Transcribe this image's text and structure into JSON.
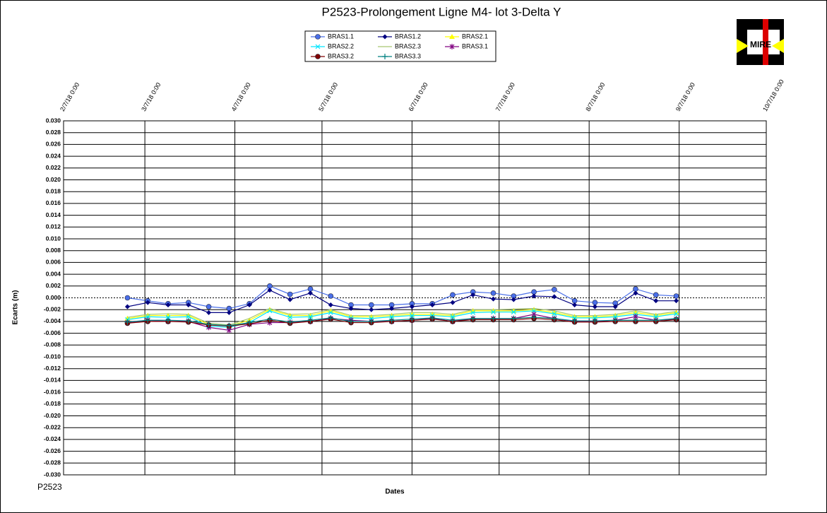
{
  "chart_data": {
    "type": "line",
    "title": "P2523-Prolongement  Ligne  M4-  lot 3-Delta  Y",
    "xlabel": "Dates",
    "ylabel": "Ecarts (m)",
    "note": "P2523",
    "grid": true,
    "legend": "top",
    "x": [
      "2018-03-01",
      "2018-03-08",
      "2018-03-15",
      "2018-03-22",
      "2018-03-29",
      "2018-04-05",
      "2018-04-12",
      "2018-04-19",
      "2018-04-26",
      "2018-05-03",
      "2018-05-10",
      "2018-05-17",
      "2018-05-24",
      "2018-05-31",
      "2018-06-07",
      "2018-06-14",
      "2018-06-21",
      "2018-06-28",
      "2018-07-05",
      "2018-07-12",
      "2018-07-19",
      "2018-07-26",
      "2018-08-02",
      "2018-08-09",
      "2018-08-16",
      "2018-08-23",
      "2018-08-30",
      "2018-09-06"
    ],
    "xlim": [
      "2018-02-07",
      "2018-10-07"
    ],
    "xticks": [
      {
        "value": "2018-02-07",
        "label": "2/7/18 0:00"
      },
      {
        "value": "2018-03-07",
        "label": "3/7/18 0:00"
      },
      {
        "value": "2018-04-07",
        "label": "4/7/18 0:00"
      },
      {
        "value": "2018-05-07",
        "label": "5/7/18 0:00"
      },
      {
        "value": "2018-06-07",
        "label": "6/7/18 0:00"
      },
      {
        "value": "2018-07-07",
        "label": "7/7/18 0:00"
      },
      {
        "value": "2018-08-07",
        "label": "8/7/18 0:00"
      },
      {
        "value": "2018-09-07",
        "label": "9/7/18 0:00"
      },
      {
        "value": "2018-10-07",
        "label": "10/7/18 0:00"
      }
    ],
    "ylim": [
      -0.03,
      0.03
    ],
    "yticks": [
      {
        "value": 0.03,
        "label": "0.030"
      },
      {
        "value": 0.028,
        "label": "0.028"
      },
      {
        "value": 0.026,
        "label": "0.026"
      },
      {
        "value": 0.024,
        "label": "0.024"
      },
      {
        "value": 0.022,
        "label": "0.022"
      },
      {
        "value": 0.02,
        "label": "0.020"
      },
      {
        "value": 0.018,
        "label": "0.018"
      },
      {
        "value": 0.016,
        "label": "0.016"
      },
      {
        "value": 0.014,
        "label": "0.014"
      },
      {
        "value": 0.012,
        "label": "0.012"
      },
      {
        "value": 0.01,
        "label": "0.010"
      },
      {
        "value": 0.008,
        "label": "0.008"
      },
      {
        "value": 0.006,
        "label": "0.006"
      },
      {
        "value": 0.004,
        "label": "0.004"
      },
      {
        "value": 0.002,
        "label": "0.002"
      },
      {
        "value": 0,
        "label": "0.000"
      },
      {
        "value": -0.002,
        "label": "-0.002"
      },
      {
        "value": -0.004,
        "label": "-0.004"
      },
      {
        "value": -0.006,
        "label": "-0.006"
      },
      {
        "value": -0.008,
        "label": "-0.008"
      },
      {
        "value": -0.01,
        "label": "-0.010"
      },
      {
        "value": -0.012,
        "label": "-0.012"
      },
      {
        "value": -0.014,
        "label": "-0.014"
      },
      {
        "value": -0.016,
        "label": "-0.016"
      },
      {
        "value": -0.018,
        "label": "-0.018"
      },
      {
        "value": -0.02,
        "label": "-0.020"
      },
      {
        "value": -0.022,
        "label": "-0.022"
      },
      {
        "value": -0.024,
        "label": "-0.024"
      },
      {
        "value": -0.026,
        "label": "-0.026"
      },
      {
        "value": -0.028,
        "label": "-0.028"
      },
      {
        "value": -0.03,
        "label": "-0.030"
      }
    ],
    "series": [
      {
        "name": "BRAS1.1",
        "color": "#4a6fe8",
        "marker": "circle",
        "values": [
          0.0,
          -0.0005,
          -0.001,
          -0.0008,
          -0.0015,
          -0.0018,
          -0.001,
          0.002,
          0.0006,
          0.0015,
          0.0003,
          -0.0012,
          -0.0012,
          -0.0012,
          -0.001,
          -0.001,
          0.0005,
          0.001,
          0.0008,
          0.0003,
          0.001,
          0.0014,
          -0.0005,
          -0.0008,
          -0.0009,
          0.0015,
          0.0005,
          0.0003
        ]
      },
      {
        "name": "BRAS1.2",
        "color": "#000080",
        "marker": "diamond",
        "values": [
          -0.0015,
          -0.0008,
          -0.0012,
          -0.0012,
          -0.0025,
          -0.0025,
          -0.0012,
          0.0013,
          -0.0003,
          0.0008,
          -0.0012,
          -0.0018,
          -0.002,
          -0.0018,
          -0.0015,
          -0.0012,
          -0.0008,
          0.0005,
          -0.0002,
          -0.0003,
          0.0003,
          0.0002,
          -0.0012,
          -0.0015,
          -0.0015,
          0.0008,
          -0.0005,
          -0.0005
        ]
      },
      {
        "name": "BRAS2.1",
        "color": "#ffff00",
        "marker": "triangle",
        "values": [
          -0.0035,
          -0.003,
          -0.003,
          -0.003,
          -0.0045,
          -0.0048,
          -0.0038,
          -0.002,
          -0.003,
          -0.003,
          -0.0022,
          -0.0032,
          -0.0032,
          -0.003,
          -0.0028,
          -0.0028,
          -0.003,
          -0.0022,
          -0.0022,
          -0.0022,
          -0.002,
          -0.0025,
          -0.0032,
          -0.0032,
          -0.003,
          -0.0025,
          -0.003,
          -0.0025
        ]
      },
      {
        "name": "BRAS2.2",
        "color": "#00e5ff",
        "marker": "x",
        "values": [
          -0.0037,
          -0.0032,
          -0.0033,
          -0.0032,
          -0.0048,
          -0.005,
          -0.0042,
          -0.0022,
          -0.0033,
          -0.0032,
          -0.0025,
          -0.0034,
          -0.0035,
          -0.0032,
          -0.003,
          -0.003,
          -0.0032,
          -0.0025,
          -0.0024,
          -0.0024,
          -0.0022,
          -0.0027,
          -0.0034,
          -0.0034,
          -0.0032,
          -0.0028,
          -0.0032,
          -0.0027
        ]
      },
      {
        "name": "BRAS2.3",
        "color": "#a8c870",
        "values": [
          -0.0033,
          -0.0028,
          -0.0027,
          -0.0028,
          -0.0043,
          -0.0046,
          -0.0035,
          -0.0018,
          -0.0028,
          -0.0027,
          -0.002,
          -0.003,
          -0.003,
          -0.0028,
          -0.0025,
          -0.0025,
          -0.0028,
          -0.002,
          -0.002,
          -0.0019,
          -0.0018,
          -0.0022,
          -0.003,
          -0.003,
          -0.0028,
          -0.0022,
          -0.0028,
          -0.0023
        ]
      },
      {
        "name": "BRAS3.1",
        "color": "#800080",
        "marker": "star",
        "values": [
          -0.0042,
          -0.0038,
          -0.004,
          -0.004,
          -0.005,
          -0.0055,
          -0.0045,
          -0.0042,
          -0.0042,
          -0.004,
          -0.0035,
          -0.0038,
          -0.004,
          -0.004,
          -0.0038,
          -0.0035,
          -0.004,
          -0.0035,
          -0.0035,
          -0.0035,
          -0.0028,
          -0.0035,
          -0.004,
          -0.004,
          -0.0038,
          -0.0032,
          -0.0038,
          -0.0036
        ]
      },
      {
        "name": "BRAS3.2",
        "color": "#800000",
        "marker": "circle",
        "values": [
          -0.0043,
          -0.004,
          -0.004,
          -0.0041,
          -0.0046,
          -0.0048,
          -0.0044,
          -0.0038,
          -0.0043,
          -0.004,
          -0.0036,
          -0.0042,
          -0.0042,
          -0.004,
          -0.0038,
          -0.0036,
          -0.004,
          -0.0037,
          -0.0037,
          -0.0037,
          -0.0035,
          -0.0037,
          -0.0041,
          -0.0041,
          -0.004,
          -0.004,
          -0.004,
          -0.0037
        ]
      },
      {
        "name": "BRAS3.3",
        "color": "#008080",
        "marker": "plus",
        "values": [
          -0.0041,
          -0.0038,
          -0.0038,
          -0.0039,
          -0.0045,
          -0.0047,
          -0.0042,
          -0.0036,
          -0.0041,
          -0.0038,
          -0.0034,
          -0.004,
          -0.004,
          -0.0038,
          -0.0036,
          -0.0034,
          -0.0038,
          -0.0035,
          -0.0035,
          -0.0035,
          -0.0033,
          -0.0035,
          -0.0039,
          -0.0039,
          -0.0038,
          -0.0038,
          -0.0038,
          -0.0035
        ]
      }
    ]
  },
  "logo": {
    "text": "MIRE"
  }
}
